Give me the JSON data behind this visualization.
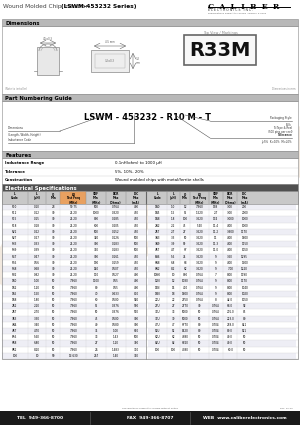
{
  "title_normal": "Wound Molded Chip Inductor",
  "title_bold": "(LSWM-453232 Series)",
  "company": "CALIBER",
  "company_sub": "ELECTRONICS INC.",
  "company_tag": "specifications subject to change  revision 3-2003",
  "section_dimensions": "Dimensions",
  "section_part": "Part Numbering Guide",
  "section_features": "Features",
  "section_electrical": "Electrical Specifications",
  "part_example": "LSWM - 453232 - R10 M - T",
  "top_view_label": "Top View / Markings",
  "part_marking": "R33M",
  "dim_note": "Dimensions in mm",
  "features": [
    [
      "Inductance Range",
      "0.1nH(ohm) to 1000 μH"
    ],
    [
      "Tolerance",
      "5%, 10%, 20%"
    ],
    [
      "Construction",
      "Wound molded chips with metal/ferrite shells"
    ]
  ],
  "table_data": [
    [
      "R10",
      "0.10",
      "28",
      "99.75",
      "500",
      "0.764",
      "400",
      "1N0",
      "1.0",
      "12",
      "7.960",
      "198",
      "3.00",
      "200"
    ],
    [
      "R12",
      "0.12",
      "30",
      "25.20",
      "1000",
      "0.320",
      "450",
      "1N5",
      "1.5",
      "55",
      "1.520",
      "2.7",
      "3.00",
      "2000"
    ],
    [
      "R15",
      "0.15",
      "30",
      "25.20",
      "800",
      "0.285",
      "450",
      "1N8",
      "1.8",
      "100",
      "3.520",
      "174",
      "3.000",
      "1000"
    ],
    [
      "R18",
      "0.18",
      "30",
      "25.20",
      "600",
      "0.205",
      "450",
      "2N2",
      "2.2",
      "45",
      "5.40",
      "11.4",
      "4.00",
      "1000"
    ],
    [
      "R22",
      "0.22",
      "30",
      "25.20",
      "500",
      "0.152",
      "450",
      "2R7",
      "2.7",
      "27",
      "3.520",
      "11.2",
      "3.600",
      "1170"
    ],
    [
      "R27",
      "0.27",
      "30",
      "25.20",
      "320",
      "0.126",
      "500",
      "3N3",
      "3.3",
      "50",
      "3.520",
      "11",
      "4.00",
      "1600"
    ],
    [
      "R33",
      "0.33",
      "30",
      "25.20",
      "300",
      "0.183",
      "500",
      "3N9",
      "3.9",
      "59",
      "3.520",
      "11.3",
      "4.00",
      "1150"
    ],
    [
      "R39",
      "0.39",
      "30",
      "25.20",
      "350",
      "0.183",
      "500",
      "4R7",
      "4.7",
      "67",
      "3.520",
      "11.0",
      "4.00",
      "1050"
    ],
    [
      "R47",
      "0.47",
      "30",
      "25.20",
      "300",
      "0.161",
      "450",
      "5N6",
      "5.6",
      "74",
      "3.520",
      "9",
      "3.50",
      "1295"
    ],
    [
      "R56",
      "0.56",
      "30",
      "25.20",
      "190",
      "0.159",
      "450",
      "6N8",
      "6.8",
      "68",
      "3.520",
      "9",
      "4.00",
      "1300"
    ],
    [
      "R68",
      "0.68",
      "30",
      "25.20",
      "140",
      "0.507",
      "450",
      "8N2",
      "8.2",
      "62",
      "3.520",
      "9",
      "7.00",
      "1220"
    ],
    [
      "R82",
      "0.82",
      "30",
      "25.20",
      "110",
      "0.527",
      "400",
      "10N0",
      "10",
      "880",
      "0.764",
      "7",
      "8.00",
      "1190"
    ],
    [
      "1R0",
      "1.00",
      "50",
      "7.960",
      "1100",
      "0.55",
      "400",
      "12N",
      "12",
      "1080",
      "0.764",
      "9",
      "8.00",
      "1170"
    ],
    [
      "1R2",
      "1.20",
      "50",
      "7.960",
      "80",
      "0.55",
      "400",
      "15N",
      "15",
      "410",
      "0.764",
      "9",
      "8.00",
      "1040"
    ],
    [
      "1R5",
      "1.50",
      "50",
      "7.960",
      "70",
      "0.633",
      "810",
      "18N",
      "18",
      "1600",
      "0.764",
      "9",
      "8.00",
      "1020"
    ],
    [
      "1R8",
      "1.80",
      "50",
      "7.960",
      "60",
      "0.500",
      "920",
      "22U",
      "22",
      "2750",
      "0.764",
      "8",
      "42.0",
      "1050"
    ],
    [
      "2R2",
      "2.20",
      "50",
      "7.960",
      "55",
      "0.376",
      "980",
      "27U",
      "27",
      "2770",
      "30",
      "0.764",
      "68.0",
      "92"
    ],
    [
      "2R7",
      "2.70",
      "50",
      "7.960",
      "50",
      "0.376",
      "570",
      "33U",
      "33",
      "5000",
      "50",
      "0.764",
      "201.0",
      "85"
    ],
    [
      "3R3",
      "3.30",
      "50",
      "7.960",
      "45",
      "0.500",
      "300",
      "39U",
      "39",
      "5000",
      "50",
      "0.764",
      "223.0",
      "80"
    ],
    [
      "4N4",
      "3.40",
      "50",
      "7.960",
      "40",
      "0.580",
      "300",
      "47U",
      "47",
      "6770",
      "80",
      "0.704",
      "288.0",
      "841"
    ],
    [
      "4R7",
      "4.70",
      "50",
      "7.960",
      "35",
      "1.00",
      "610",
      "52U",
      "52",
      "5420",
      "80",
      "0.704",
      "80.0",
      "521"
    ],
    [
      "5R6",
      "5.60",
      "50",
      "7.960",
      "33",
      "1.43",
      "500",
      "62U",
      "62",
      "4680",
      "50",
      "0.704",
      "40.0",
      "50"
    ],
    [
      "6R8",
      "6.80",
      "50",
      "7.960",
      "27",
      "1.20",
      "380",
      "82U",
      "82",
      "6820",
      "50",
      "0.704",
      "40.0",
      "50"
    ],
    [
      "8R2",
      "8.20",
      "50",
      "7.960",
      "26",
      "1.483",
      "370",
      "100",
      "100",
      "4380",
      "50",
      "0.704",
      "60.0",
      "50"
    ],
    [
      "100",
      "10",
      "90",
      "13.630",
      "267",
      "1.40",
      "350",
      "",
      "",
      "",
      "",
      "",
      "",
      ""
    ]
  ],
  "footer_bg": "#1a1a1a",
  "tel": "TEL  949-366-8700",
  "fax": "FAX  949-366-8707",
  "web": "WEB  www.caliberelectronics.com",
  "watermark_color": "#d4b896"
}
